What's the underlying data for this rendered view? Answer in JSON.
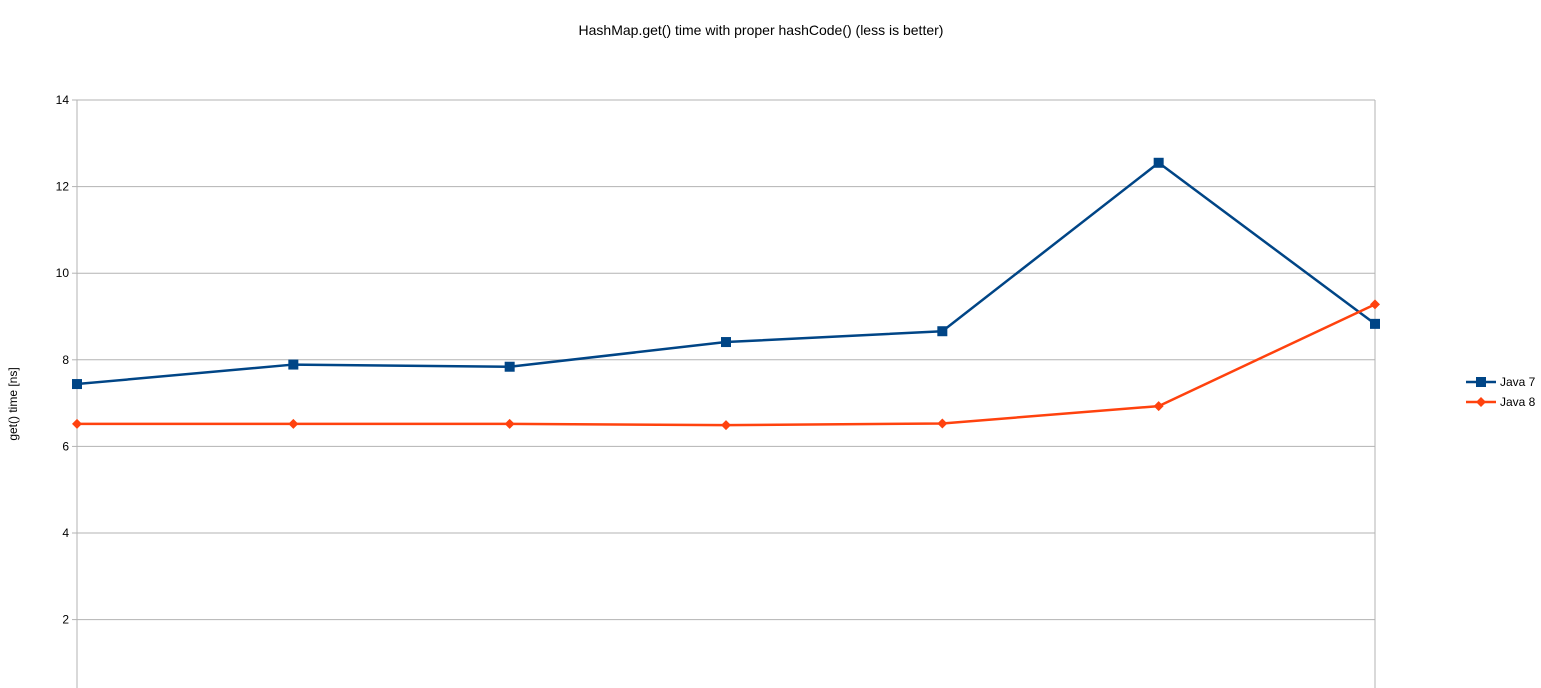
{
  "chart_data": {
    "type": "line",
    "title": "HashMap.get() time with proper hashCode() (less is better)",
    "xlabel": "",
    "ylabel": "get() time [ns]",
    "ylim": [
      0,
      14
    ],
    "yticks": [
      2,
      4,
      6,
      8,
      10,
      12,
      14
    ],
    "grid": true,
    "legend_position": "right",
    "x": [
      1,
      2,
      3,
      4,
      5,
      6,
      7
    ],
    "series": [
      {
        "name": "Java 7",
        "values": [
          7.44,
          7.89,
          7.84,
          8.41,
          8.66,
          12.55,
          8.83
        ],
        "color": "#004586",
        "marker": "square"
      },
      {
        "name": "Java 8",
        "values": [
          6.52,
          6.52,
          6.52,
          6.49,
          6.53,
          6.93,
          9.28
        ],
        "color": "#ff420e",
        "marker": "diamond"
      }
    ]
  }
}
